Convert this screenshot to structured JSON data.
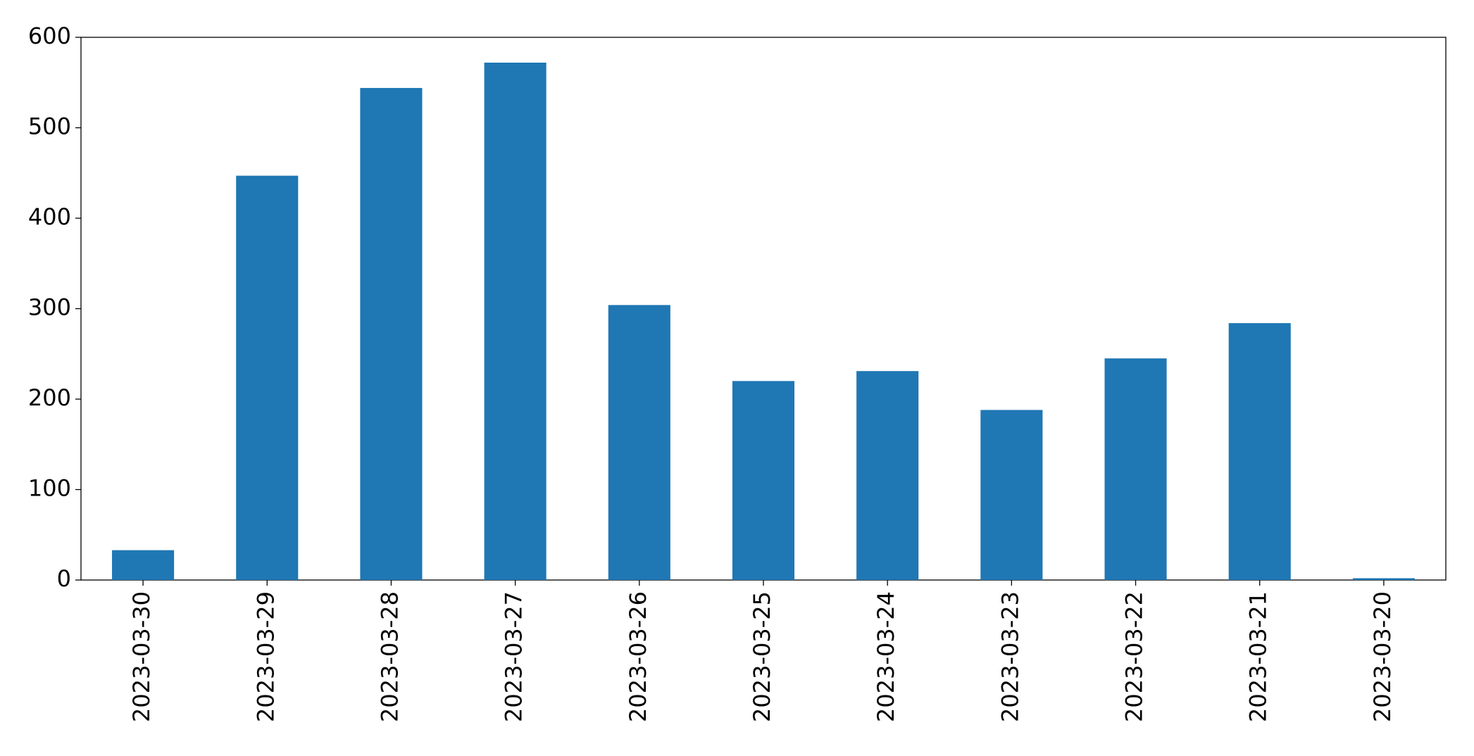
{
  "chart_data": {
    "type": "bar",
    "categories": [
      "2023-03-30",
      "2023-03-29",
      "2023-03-28",
      "2023-03-27",
      "2023-03-26",
      "2023-03-25",
      "2023-03-24",
      "2023-03-23",
      "2023-03-22",
      "2023-03-21",
      "2023-03-20"
    ],
    "values": [
      33,
      447,
      544,
      572,
      304,
      220,
      231,
      188,
      245,
      284,
      2
    ],
    "color": "#1f77b4",
    "ylim": [
      0,
      600
    ],
    "yticks": [
      0,
      100,
      200,
      300,
      400,
      500,
      600
    ],
    "grid": false
  }
}
